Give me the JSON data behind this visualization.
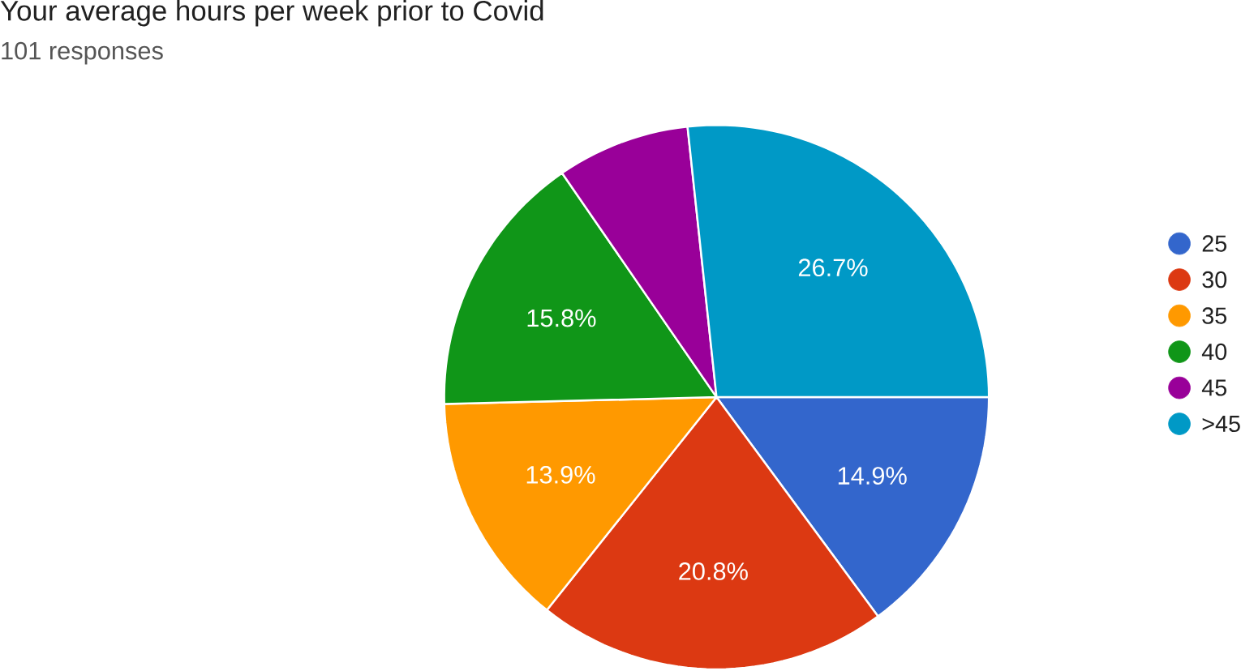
{
  "chart_data": {
    "type": "pie",
    "title": "Your average hours per week prior to Covid",
    "subtitle": "101 responses",
    "categories": [
      "25",
      "30",
      "35",
      "40",
      "45",
      ">45"
    ],
    "values": [
      14.9,
      20.8,
      13.9,
      15.8,
      7.9,
      26.7
    ],
    "value_labels": [
      "14.9%",
      "20.8%",
      "13.9%",
      "15.8%",
      null,
      "26.7%"
    ],
    "colors": [
      "#3366cc",
      "#dc3912",
      "#ff9900",
      "#109618",
      "#990099",
      "#0099c6"
    ],
    "legend": "right"
  }
}
